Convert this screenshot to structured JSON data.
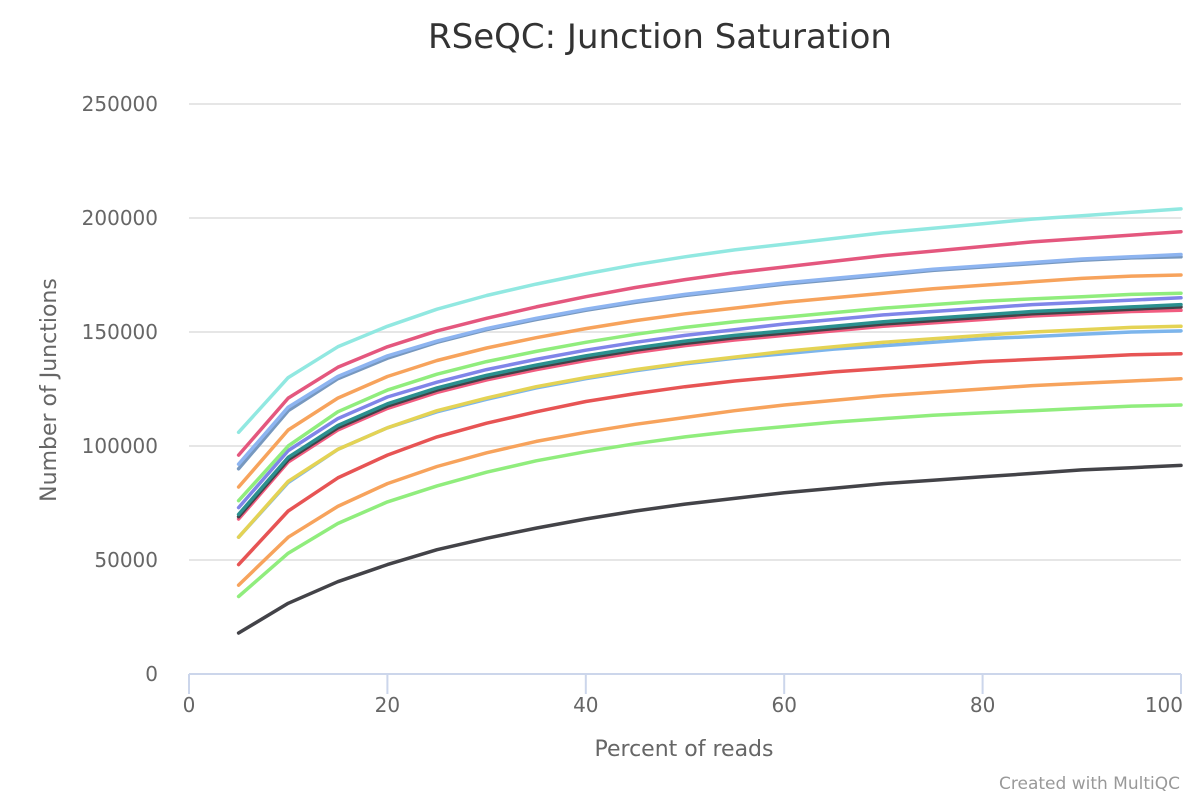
{
  "chart_data": {
    "type": "line",
    "title": "RSeQC: Junction Saturation",
    "xlabel": "Percent of reads",
    "ylabel": "Number of Junctions",
    "xlim": [
      0,
      100
    ],
    "ylim": [
      0,
      250000
    ],
    "xticks": [
      "0",
      "20",
      "40",
      "60",
      "80",
      "100"
    ],
    "yticks": [
      "0",
      "50000",
      "100000",
      "150000",
      "200000",
      "250000"
    ],
    "grid": true,
    "credit": "Created with MultiQC",
    "x": [
      5,
      10,
      15,
      20,
      25,
      30,
      35,
      40,
      45,
      50,
      55,
      60,
      65,
      70,
      75,
      80,
      85,
      90,
      95,
      100
    ],
    "series": [
      {
        "color": "#91e8e1",
        "values": [
          106000,
          130000,
          143500,
          152500,
          160000,
          166000,
          171000,
          175500,
          179500,
          183000,
          186000,
          188500,
          191000,
          193500,
          195500,
          197500,
          199500,
          201000,
          202500,
          204000
        ]
      },
      {
        "color": "#e4577e",
        "values": [
          96000,
          121000,
          134500,
          143500,
          150500,
          156000,
          161000,
          165500,
          169500,
          173000,
          176000,
          178500,
          181000,
          183500,
          185500,
          187500,
          189500,
          191000,
          192500,
          194000
        ]
      },
      {
        "color": "#8db4f0",
        "values": [
          92000,
          117000,
          130500,
          139500,
          146000,
          151500,
          156000,
          160000,
          163500,
          166500,
          169000,
          171500,
          173500,
          175500,
          177500,
          179000,
          180500,
          182000,
          183000,
          184000
        ]
      },
      {
        "color": "#7798BF",
        "values": [
          90000,
          115500,
          129500,
          138500,
          145500,
          151000,
          155500,
          159500,
          163000,
          166000,
          168500,
          171000,
          173000,
          175000,
          177000,
          178500,
          180000,
          181500,
          182500,
          183000
        ]
      },
      {
        "color": "#f7a35c",
        "values": [
          82000,
          107000,
          121000,
          130500,
          137500,
          143000,
          147500,
          151500,
          155000,
          158000,
          160500,
          163000,
          165000,
          167000,
          169000,
          170500,
          172000,
          173500,
          174500,
          175000
        ]
      },
      {
        "color": "#90ed7d",
        "values": [
          76000,
          100000,
          115000,
          124500,
          131500,
          137000,
          141500,
          145500,
          149000,
          152000,
          154500,
          156500,
          158500,
          160500,
          162000,
          163500,
          164500,
          165500,
          166500,
          167000
        ]
      },
      {
        "color": "#8085e9",
        "values": [
          73000,
          98000,
          112000,
          121500,
          128000,
          133500,
          138000,
          142000,
          145500,
          148500,
          151000,
          153500,
          155500,
          157500,
          159000,
          160500,
          162000,
          163000,
          164000,
          165000
        ]
      },
      {
        "color": "#2b908f",
        "values": [
          70000,
          95000,
          109000,
          118500,
          125500,
          131000,
          135500,
          139500,
          143000,
          146000,
          148500,
          150500,
          152500,
          154500,
          156000,
          157500,
          159000,
          160000,
          161000,
          162000
        ]
      },
      {
        "color": "#434348",
        "values": [
          69000,
          94000,
          108000,
          117500,
          124500,
          130000,
          134500,
          138500,
          142000,
          145000,
          147500,
          149500,
          151500,
          153500,
          155000,
          156500,
          158000,
          159000,
          160000,
          161000
        ]
      },
      {
        "color": "#f15c80",
        "values": [
          68000,
          93000,
          107000,
          116500,
          123500,
          129000,
          133500,
          137500,
          141000,
          144000,
          146500,
          148500,
          150500,
          152500,
          154000,
          155500,
          157000,
          158000,
          159000,
          159500
        ]
      },
      {
        "color": "#e4d354",
        "values": [
          60000,
          84500,
          98500,
          108000,
          115500,
          121000,
          126000,
          130000,
          133500,
          136500,
          139000,
          141500,
          143500,
          145500,
          147000,
          148500,
          150000,
          151000,
          152000,
          152500
        ]
      },
      {
        "color": "#7cb5ec",
        "values": [
          60000,
          84000,
          98500,
          108000,
          115000,
          120500,
          125500,
          129500,
          133000,
          136000,
          138500,
          140500,
          142500,
          144000,
          145500,
          147000,
          148000,
          149000,
          150000,
          150500
        ]
      },
      {
        "color": "#e75454",
        "values": [
          48000,
          71500,
          86000,
          96000,
          104000,
          110000,
          115000,
          119500,
          123000,
          126000,
          128500,
          130500,
          132500,
          134000,
          135500,
          137000,
          138000,
          139000,
          140000,
          140500
        ]
      },
      {
        "color": "#f7a35c",
        "values": [
          39000,
          60000,
          73500,
          83500,
          91000,
          97000,
          102000,
          106000,
          109500,
          112500,
          115500,
          118000,
          120000,
          122000,
          123500,
          125000,
          126500,
          127500,
          128500,
          129500
        ]
      },
      {
        "color": "#90ed7d",
        "values": [
          34000,
          53000,
          66000,
          75500,
          82500,
          88500,
          93500,
          97500,
          101000,
          104000,
          106500,
          108500,
          110500,
          112000,
          113500,
          114500,
          115500,
          116500,
          117500,
          118000
        ]
      },
      {
        "color": "#434348",
        "values": [
          18000,
          31000,
          40500,
          48000,
          54500,
          59500,
          64000,
          68000,
          71500,
          74500,
          77000,
          79500,
          81500,
          83500,
          85000,
          86500,
          88000,
          89500,
          90500,
          91500
        ]
      }
    ]
  }
}
